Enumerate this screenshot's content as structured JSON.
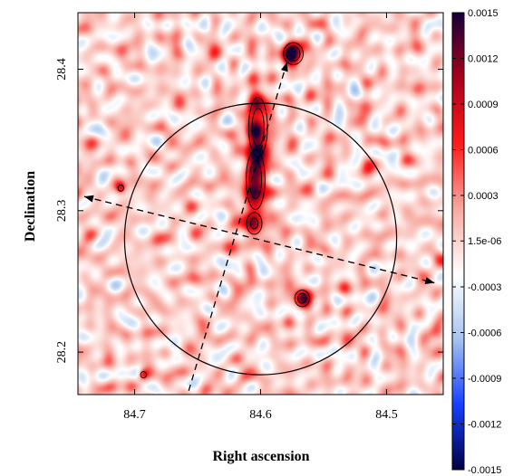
{
  "chart_data": {
    "type": "heatmap",
    "title": "",
    "xlabel": "Right ascension",
    "ylabel": "Declination",
    "xlim": [
      84.745,
      84.455
    ],
    "ylim": [
      28.17,
      28.44
    ],
    "x_ticks": [
      "84.7",
      "84.6",
      "84.5"
    ],
    "x_tick_values": [
      84.7,
      84.6,
      84.5
    ],
    "y_ticks": [
      "28.4",
      "28.3",
      "28.2"
    ],
    "y_tick_values": [
      28.4,
      28.3,
      28.2
    ],
    "colorbar": {
      "min": -0.0015,
      "max": 0.0015,
      "tick_labels": [
        "0.0015",
        "0.0012",
        "0.0009",
        "0.0006",
        "0.0003",
        "1.5e-06",
        "-0.0003",
        "-0.0006",
        "-0.0009",
        "-0.0012",
        "-0.0015"
      ],
      "tick_values": [
        0.0015,
        0.0012,
        0.0009,
        0.0006,
        0.0003,
        1.5e-06,
        -0.0003,
        -0.0006,
        -0.0009,
        -0.0012,
        -0.0015
      ],
      "colormap": [
        "#14003a",
        "#a8001c",
        "#ff1a1a",
        "#f7a9a0",
        "#ffffff",
        "#a6c4ef",
        "#1640ff",
        "#000042"
      ]
    },
    "grid": false,
    "noise_colors": {
      "negative": "#6f9ee6",
      "positive": "#ef8c80"
    },
    "sources": [
      {
        "ra": 84.602,
        "dec": 28.359,
        "sigma_ra": 0.006,
        "sigma_dec": 0.017,
        "amplitude": 0.0013
      },
      {
        "ra": 84.604,
        "dec": 28.322,
        "sigma_ra": 0.006,
        "sigma_dec": 0.017,
        "amplitude": 0.0013
      },
      {
        "ra": 84.605,
        "dec": 28.291,
        "sigma_ra": 0.0055,
        "sigma_dec": 0.007,
        "amplitude": 0.0011
      },
      {
        "ra": 84.574,
        "dec": 28.411,
        "sigma_ra": 0.006,
        "sigma_dec": 0.006,
        "amplitude": 0.0014
      },
      {
        "ra": 84.567,
        "dec": 28.238,
        "sigma_ra": 0.005,
        "sigma_dec": 0.005,
        "amplitude": 0.0012
      },
      {
        "ra": 84.711,
        "dec": 28.316,
        "sigma_ra": 0.003,
        "sigma_dec": 0.003,
        "amplitude": 0.0008
      },
      {
        "ra": 84.693,
        "dec": 28.184,
        "sigma_ra": 0.003,
        "sigma_dec": 0.003,
        "amplitude": 0.0008
      }
    ],
    "contour_levels": [
      0.0006,
      0.00095
    ],
    "circle": {
      "center_ra": 84.6,
      "center_dec": 28.28,
      "radius_deg": 0.108
    },
    "arrows": [
      {
        "from_ra": 84.662,
        "from_dec": 28.158,
        "to_ra": 84.579,
        "to_dec": 28.405,
        "style": "dashed",
        "heads": "end"
      },
      {
        "from_ra": 84.74,
        "from_dec": 28.31,
        "to_ra": 84.462,
        "to_dec": 28.249,
        "style": "dashed",
        "heads": "both"
      }
    ]
  }
}
